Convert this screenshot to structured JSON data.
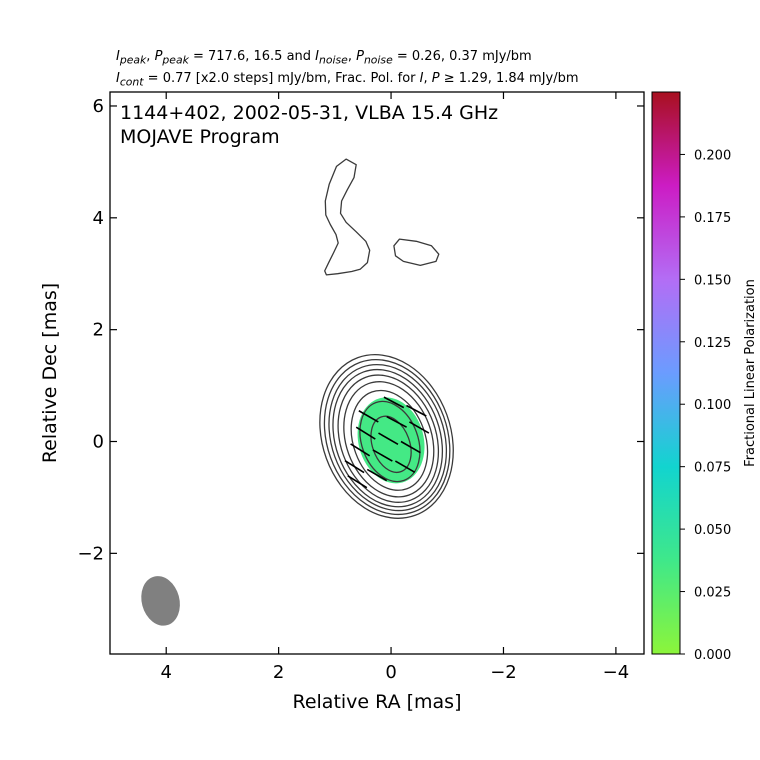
{
  "header": {
    "line1": {
      "ipeak": "I",
      "ipeak_sub": "peak",
      "sep1": ", ",
      "ppeak": "P",
      "ppeak_sub": "peak",
      "eq1": " = 717.6, 16.5 and ",
      "inoise": "I",
      "inoise_sub": "noise",
      "sep2": ", ",
      "pnoise": "P",
      "pnoise_sub": "noise",
      "eq2": " = 0.26, 0.37 mJy/bm"
    },
    "line2": {
      "icont": "I",
      "icont_sub": "cont",
      "eq": " = 0.77 [x2.0 steps] mJy/bm, Frac. Pol. for ",
      "i": "I",
      "comma": ", ",
      "p": "P",
      "geq": " ≥ 1.29, 1.84 mJy/bm"
    }
  },
  "chart_data": {
    "type": "contour",
    "title": "1144+402, 2002-05-31, VLBA 15.4 GHz",
    "subtitle": "MOJAVE Program",
    "xlabel": "Relative RA [mas]",
    "ylabel": "Relative Dec [mas]",
    "xlim": [
      5.0,
      -4.5
    ],
    "ylim": [
      -3.8,
      6.25
    ],
    "x_ticks": [
      4,
      2,
      0,
      -2,
      -4
    ],
    "x_tick_labels": [
      "4",
      "2",
      "0",
      "−2",
      "−4"
    ],
    "y_ticks": [
      -2,
      0,
      2,
      4,
      6
    ],
    "y_tick_labels": [
      "−2",
      "0",
      "2",
      "4",
      "6"
    ],
    "core_contours": [
      {
        "cx": 0.0,
        "cy": -0.05,
        "rx": 0.33,
        "ry": 0.52,
        "angle_deg": -20
      },
      {
        "cx": 0.02,
        "cy": 0.0,
        "rx": 0.5,
        "ry": 0.74,
        "angle_deg": -20
      },
      {
        "cx": 0.03,
        "cy": 0.02,
        "rx": 0.64,
        "ry": 0.92,
        "angle_deg": -20
      },
      {
        "cx": 0.04,
        "cy": 0.04,
        "rx": 0.76,
        "ry": 1.06,
        "angle_deg": -20
      },
      {
        "cx": 0.05,
        "cy": 0.05,
        "rx": 0.85,
        "ry": 1.17,
        "angle_deg": -20
      },
      {
        "cx": 0.06,
        "cy": 0.06,
        "rx": 0.93,
        "ry": 1.26,
        "angle_deg": -20
      },
      {
        "cx": 0.06,
        "cy": 0.07,
        "rx": 1.0,
        "ry": 1.34,
        "angle_deg": -20
      },
      {
        "cx": 0.07,
        "cy": 0.08,
        "rx": 1.07,
        "ry": 1.42,
        "angle_deg": -20
      },
      {
        "cx": 0.08,
        "cy": 0.09,
        "rx": 1.14,
        "ry": 1.5,
        "angle_deg": -20
      }
    ],
    "extended_contours": [
      [
        [
          0.62,
          4.95
        ],
        [
          0.8,
          5.05
        ],
        [
          0.97,
          4.92
        ],
        [
          1.1,
          4.6
        ],
        [
          1.17,
          4.3
        ],
        [
          1.16,
          4.05
        ],
        [
          1.08,
          3.88
        ],
        [
          0.98,
          3.7
        ],
        [
          0.94,
          3.55
        ],
        [
          1.02,
          3.38
        ],
        [
          1.11,
          3.2
        ],
        [
          1.18,
          3.05
        ],
        [
          1.15,
          2.98
        ],
        [
          0.95,
          3.0
        ],
        [
          0.7,
          3.04
        ],
        [
          0.55,
          3.08
        ],
        [
          0.42,
          3.2
        ],
        [
          0.38,
          3.42
        ],
        [
          0.45,
          3.58
        ],
        [
          0.62,
          3.75
        ],
        [
          0.8,
          3.92
        ],
        [
          0.9,
          4.08
        ],
        [
          0.88,
          4.3
        ],
        [
          0.78,
          4.5
        ],
        [
          0.66,
          4.72
        ]
      ],
      [
        [
          -0.15,
          3.62
        ],
        [
          -0.45,
          3.58
        ],
        [
          -0.72,
          3.5
        ],
        [
          -0.85,
          3.35
        ],
        [
          -0.8,
          3.22
        ],
        [
          -0.52,
          3.15
        ],
        [
          -0.22,
          3.22
        ],
        [
          -0.08,
          3.32
        ],
        [
          -0.05,
          3.5
        ]
      ]
    ],
    "pol_region": {
      "cx": 0.0,
      "cy": 0.02,
      "rx": 0.58,
      "ry": 0.78,
      "angle_deg": -15,
      "frac_pol": 0.035
    },
    "evpa_vectors": [
      {
        "x": -0.05,
        "y": 0.7,
        "angle_deg": 28
      },
      {
        "x": -0.45,
        "y": 0.55,
        "angle_deg": 28
      },
      {
        "x": 0.4,
        "y": 0.45,
        "angle_deg": 30
      },
      {
        "x": -0.1,
        "y": 0.35,
        "angle_deg": 28
      },
      {
        "x": -0.5,
        "y": 0.25,
        "angle_deg": 30
      },
      {
        "x": 0.45,
        "y": 0.15,
        "angle_deg": 32
      },
      {
        "x": 0.05,
        "y": 0.05,
        "angle_deg": 30
      },
      {
        "x": -0.35,
        "y": -0.1,
        "angle_deg": 30
      },
      {
        "x": 0.55,
        "y": -0.15,
        "angle_deg": 32
      },
      {
        "x": 0.15,
        "y": -0.25,
        "angle_deg": 30
      },
      {
        "x": -0.25,
        "y": -0.45,
        "angle_deg": 30
      },
      {
        "x": 0.65,
        "y": -0.45,
        "angle_deg": 32
      },
      {
        "x": 0.25,
        "y": -0.6,
        "angle_deg": 30
      },
      {
        "x": 0.6,
        "y": -0.72,
        "angle_deg": 32
      }
    ],
    "beam": {
      "cx": 4.1,
      "cy": -2.85,
      "major": 0.9,
      "minor": 0.67,
      "angle_deg": -15
    },
    "colorbar": {
      "label": "Fractional Linear Polarization",
      "min": 0.0,
      "max": 0.225,
      "ticks": [
        0.0,
        0.025,
        0.05,
        0.075,
        0.1,
        0.125,
        0.15,
        0.175,
        0.2
      ],
      "tick_labels": [
        "0.000",
        "0.025",
        "0.050",
        "0.075",
        "0.100",
        "0.125",
        "0.150",
        "0.175",
        "0.200"
      ],
      "colors": [
        "#8cf53a",
        "#3fe88a",
        "#12d4cf",
        "#6b9cff",
        "#b36df5",
        "#cc1cc4",
        "#a8101f"
      ]
    },
    "colors": {
      "contour": "#3a3a3a",
      "vector": "#000000",
      "beam": "#808080"
    }
  }
}
